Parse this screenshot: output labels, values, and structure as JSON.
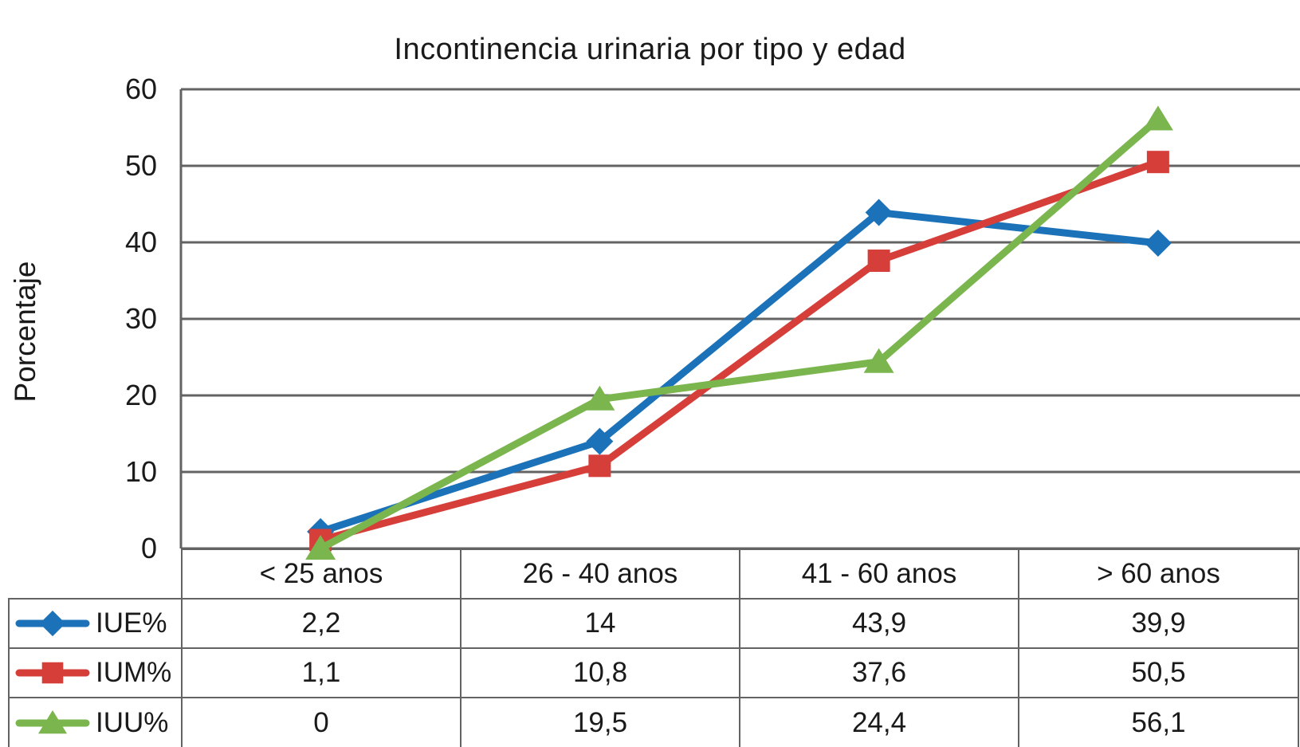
{
  "title": "Incontinencia urinaria por tipo y edad",
  "y_axis": {
    "label": "Porcentaje",
    "tick_labels": [
      "0",
      "10",
      "20",
      "30",
      "40",
      "50",
      "60"
    ]
  },
  "chart_data": {
    "type": "line",
    "title": "Incontinencia urinaria por tipo y edad",
    "xlabel": "",
    "ylabel": "Porcentaje",
    "categories": [
      "< 25 anos",
      "26 - 40 anos",
      "41 - 60 anos",
      "> 60 anos"
    ],
    "series": [
      {
        "name": "IUE%",
        "marker": "diamond",
        "color": "#1b72b8",
        "values": [
          2.2,
          14,
          43.9,
          39.9
        ],
        "value_labels": [
          "2,2",
          "14",
          "43,9",
          "39,9"
        ]
      },
      {
        "name": "IUM%",
        "marker": "square",
        "color": "#d63e3a",
        "values": [
          1.1,
          10.8,
          37.6,
          50.5
        ],
        "value_labels": [
          "1,1",
          "10,8",
          "37,6",
          "50,5"
        ]
      },
      {
        "name": "IUU%",
        "marker": "triangle",
        "color": "#7ab54e",
        "values": [
          0,
          19.5,
          24.4,
          56.1
        ],
        "value_labels": [
          "0",
          "19,5",
          "24,4",
          "56,1"
        ]
      }
    ],
    "ylim": [
      0,
      60
    ],
    "yticks": [
      0,
      10,
      20,
      30,
      40,
      50,
      60
    ],
    "grid": true,
    "gridline_color": "#636363",
    "border_color": "#636363",
    "background": "#ffffff",
    "legend_position": "table-left",
    "decimal_separator": ","
  }
}
